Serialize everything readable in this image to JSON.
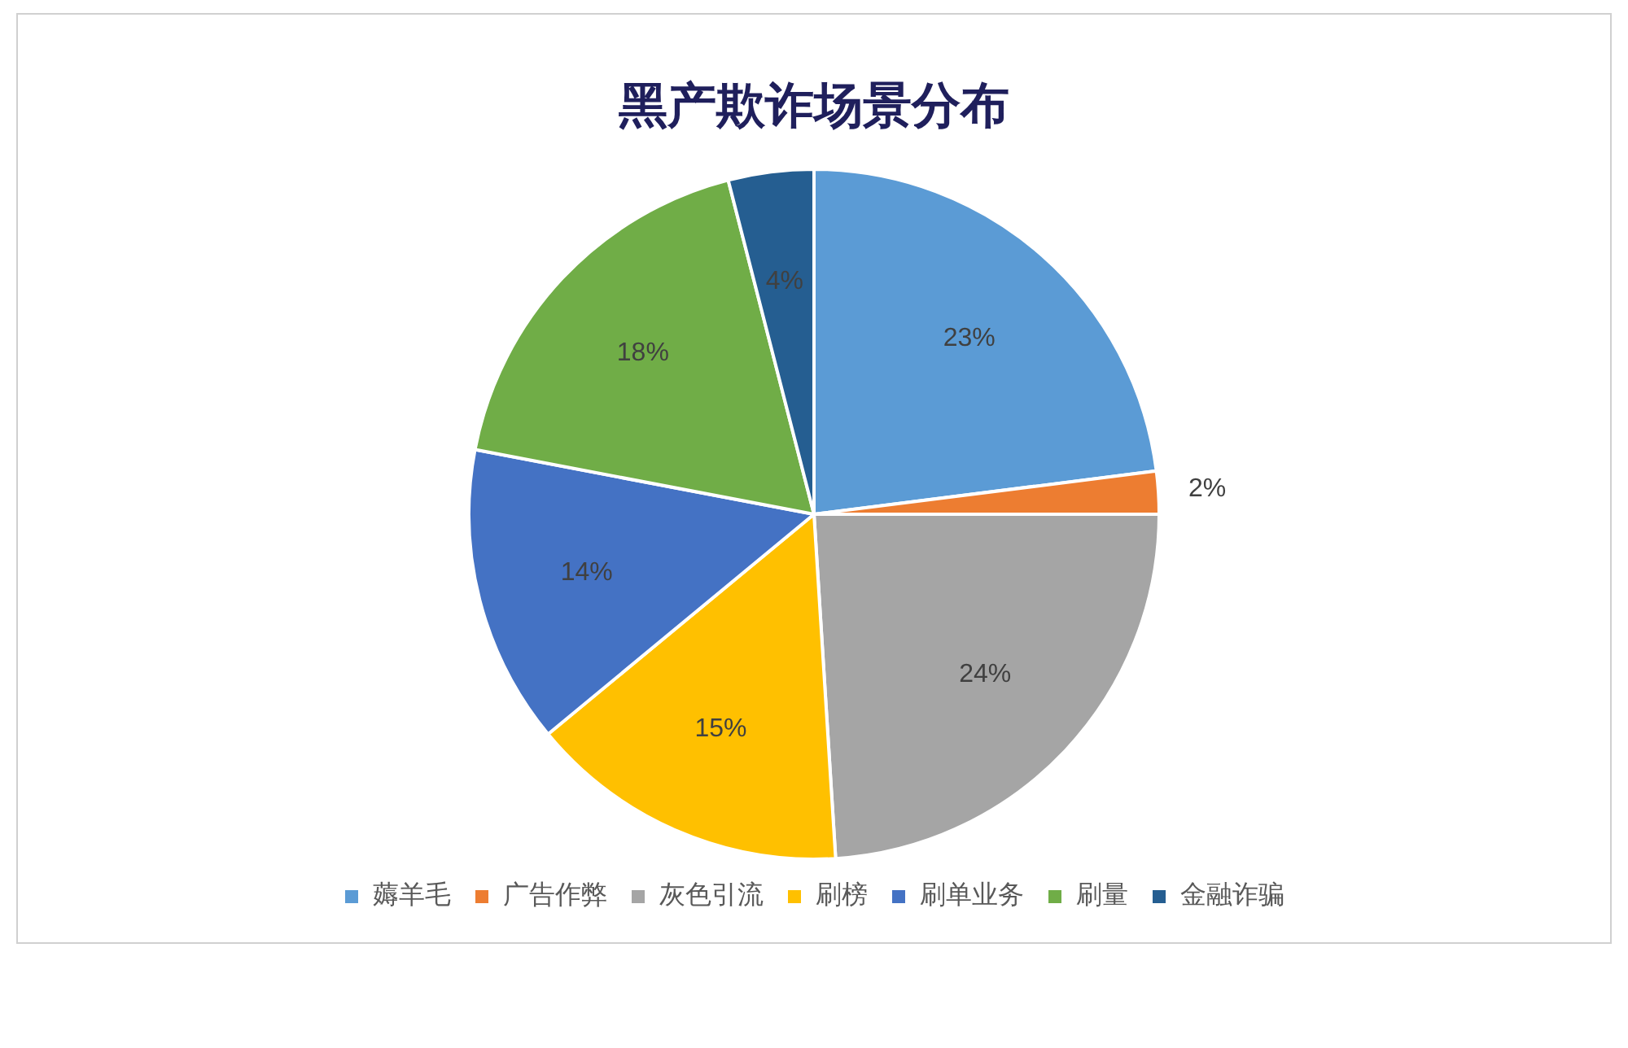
{
  "chart_data": {
    "type": "pie",
    "title": "黑产欺诈场景分布",
    "categories": [
      "薅羊毛",
      "广告作弊",
      "灰色引流",
      "刷榜",
      "刷单业务",
      "刷量",
      "金融诈骗"
    ],
    "values": [
      23,
      2,
      24,
      15,
      14,
      18,
      4
    ],
    "colors": [
      "#5b9bd5",
      "#ed7d31",
      "#a5a5a5",
      "#ffc000",
      "#4472c4",
      "#70ad47",
      "#255e91"
    ],
    "value_labels": [
      "23%",
      "2%",
      "24%",
      "15%",
      "14%",
      "18%",
      "4%"
    ],
    "legend": "bottom"
  }
}
